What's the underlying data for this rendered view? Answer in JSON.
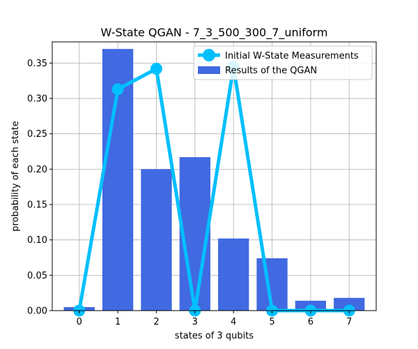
{
  "chart_data": {
    "type": "bar",
    "title": "W-State QGAN - 7_3_500_300_7_uniform",
    "xlabel": "states of 3 qubits",
    "ylabel": "probability of each state",
    "categories": [
      "0",
      "1",
      "2",
      "3",
      "4",
      "5",
      "6",
      "7"
    ],
    "ylim": [
      0,
      0.38
    ],
    "yticks": [
      "0.00",
      "0.05",
      "0.10",
      "0.15",
      "0.20",
      "0.25",
      "0.30",
      "0.35"
    ],
    "grid": true,
    "legend_position": "top-right",
    "series": [
      {
        "name": "Results of the QGAN",
        "type": "bar",
        "color": "#4169e1",
        "values": [
          0.005,
          0.37,
          0.2,
          0.217,
          0.102,
          0.074,
          0.014,
          0.018
        ]
      },
      {
        "name": "Initial W-State Measurements",
        "type": "line",
        "color": "#00bfff",
        "values": [
          0.0,
          0.313,
          0.342,
          0.0,
          0.345,
          0.0,
          0.0,
          0.0
        ]
      }
    ]
  }
}
